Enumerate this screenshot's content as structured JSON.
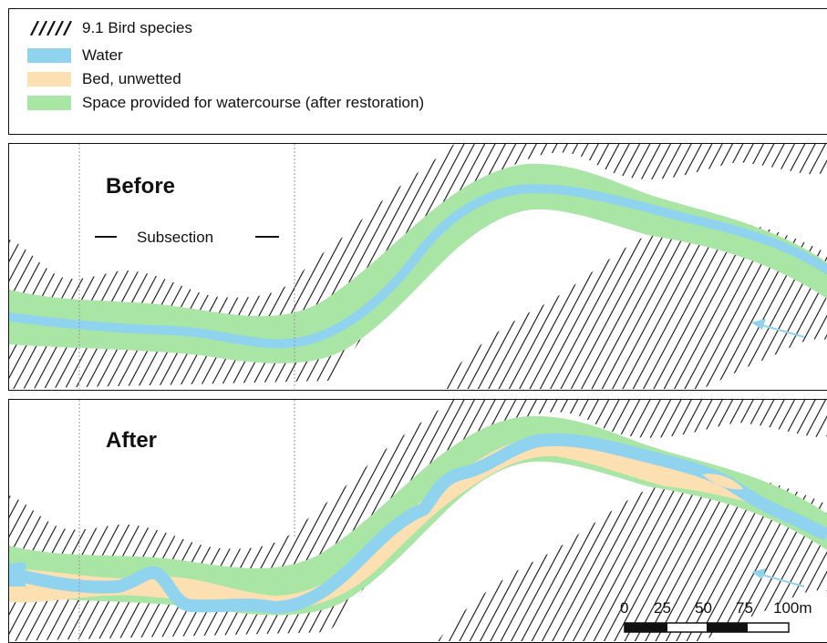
{
  "legend": {
    "items": [
      {
        "label": "9.1 Bird species",
        "symbol": "hatch-pattern",
        "color": "#111111"
      },
      {
        "label": "Water",
        "symbol": "fill",
        "color": "#8fd3ef"
      },
      {
        "label": "Bed, unwetted",
        "symbol": "fill",
        "color": "#fde0b2"
      },
      {
        "label": "Space provided for watercourse (after restoration)",
        "symbol": "fill",
        "color": "#a9e5a4"
      }
    ]
  },
  "before": {
    "title": "Before",
    "subsection_label": "Subsection",
    "flow_direction": "right-to-left"
  },
  "after": {
    "title": "After",
    "flow_direction": "right-to-left"
  },
  "scale_bar": {
    "ticks": [
      "0",
      "25",
      "50",
      "75",
      "100m"
    ]
  }
}
